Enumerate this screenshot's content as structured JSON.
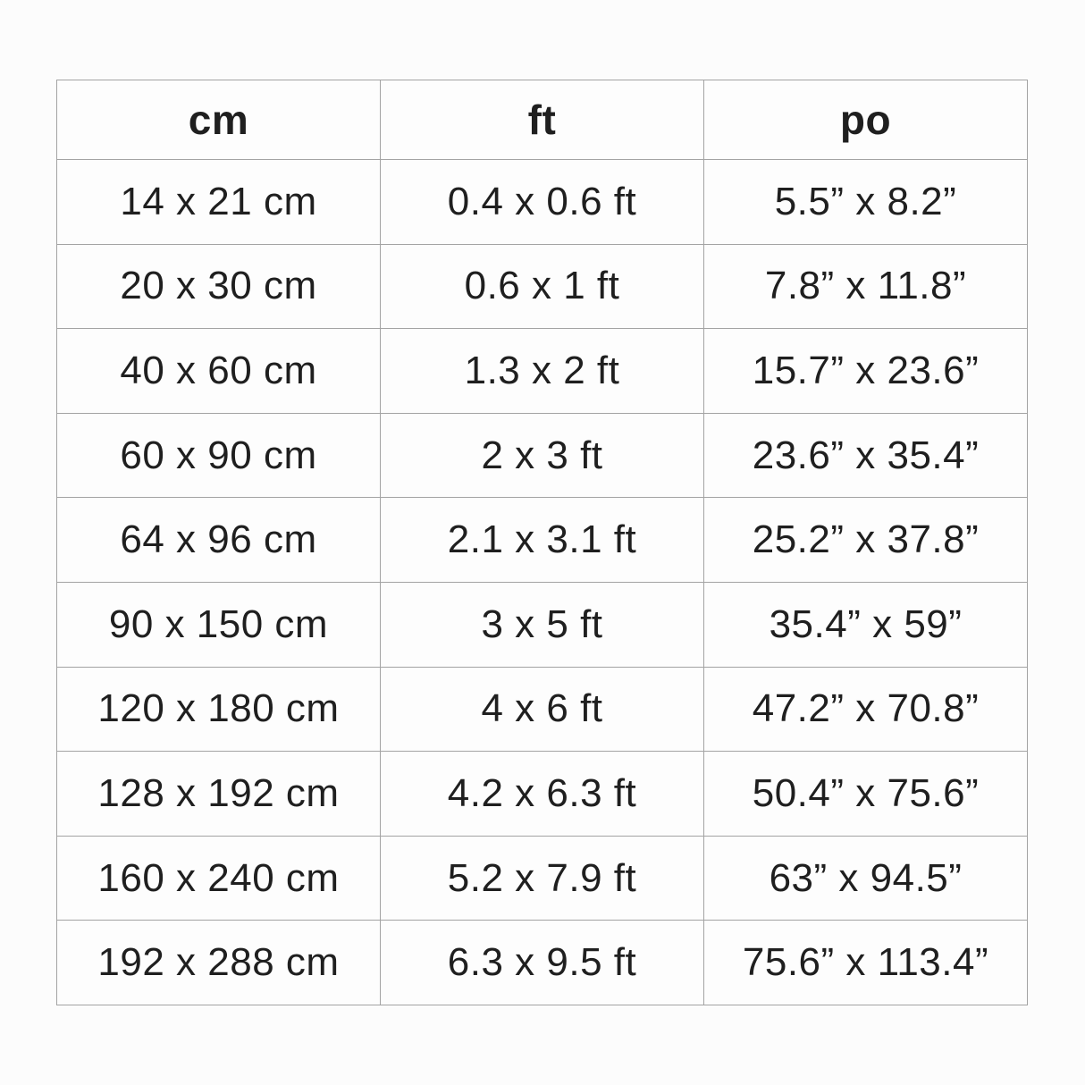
{
  "chart_data": {
    "type": "table",
    "columns": [
      "cm",
      "ft",
      "po"
    ],
    "rows": [
      [
        "14 x 21 cm",
        "0.4 x 0.6 ft",
        "5.5” x 8.2”"
      ],
      [
        "20 x 30 cm",
        "0.6 x 1 ft",
        "7.8” x 11.8”"
      ],
      [
        "40 x 60 cm",
        "1.3 x 2 ft",
        "15.7” x 23.6”"
      ],
      [
        "60 x 90 cm",
        "2 x 3 ft",
        "23.6” x 35.4”"
      ],
      [
        "64 x 96 cm",
        "2.1 x 3.1 ft",
        "25.2” x 37.8”"
      ],
      [
        "90 x 150 cm",
        "3 x 5 ft",
        "35.4” x 59”"
      ],
      [
        "120 x 180 cm",
        "4 x 6 ft",
        "47.2” x 70.8”"
      ],
      [
        "128 x 192 cm",
        "4.2 x 6.3 ft",
        "50.4” x 75.6”"
      ],
      [
        "160 x 240 cm",
        "5.2 x 7.9 ft",
        "63” x 94.5”"
      ],
      [
        "192 x 288 cm",
        "6.3 x 9.5 ft",
        "75.6” x 113.4”"
      ]
    ],
    "layout": {
      "grid": "on",
      "border_color": "#a3a3a3",
      "text_color": "#1f1f1f",
      "cell_background": "#fdfdfd",
      "page_background": "#fcfcfc"
    }
  }
}
